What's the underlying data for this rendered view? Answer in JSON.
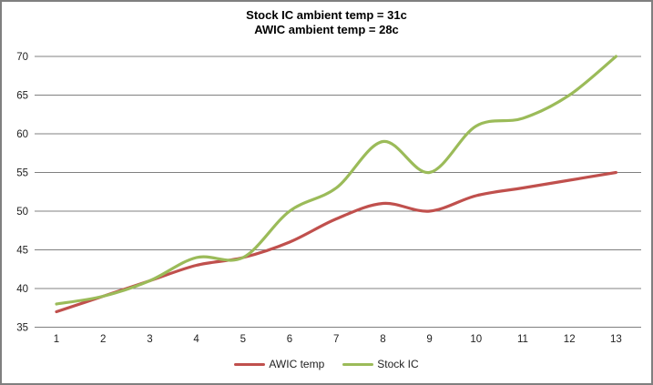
{
  "title": {
    "line1": "Stock IC ambient temp = 31c",
    "line2": "AWIC ambient temp = 28c"
  },
  "chart_data": {
    "type": "line",
    "title": "Stock IC ambient temp = 31c / AWIC ambient temp = 28c",
    "x": [
      1,
      2,
      3,
      4,
      5,
      6,
      7,
      8,
      9,
      10,
      11,
      12,
      13
    ],
    "series": [
      {
        "name": "AWIC temp",
        "color": "#C0504D",
        "values": [
          37,
          39,
          41,
          43,
          44,
          46,
          49,
          51,
          50,
          52,
          53,
          54,
          55
        ]
      },
      {
        "name": "Stock IC",
        "color": "#9BBB59",
        "values": [
          38,
          39,
          41,
          44,
          44,
          50,
          53,
          59,
          55,
          61,
          62,
          65,
          70
        ]
      }
    ],
    "xlabel": "",
    "ylabel": "",
    "ylim": [
      35,
      70
    ],
    "yticks": [
      35,
      40,
      45,
      50,
      55,
      60,
      65,
      70
    ],
    "grid": true,
    "smooth_lines": true,
    "legend_position": "bottom"
  },
  "colors": {
    "background": "#ffffff",
    "border": "#7f7f7f",
    "gridline": "#808080",
    "axis_text": "#1f1f1f"
  }
}
